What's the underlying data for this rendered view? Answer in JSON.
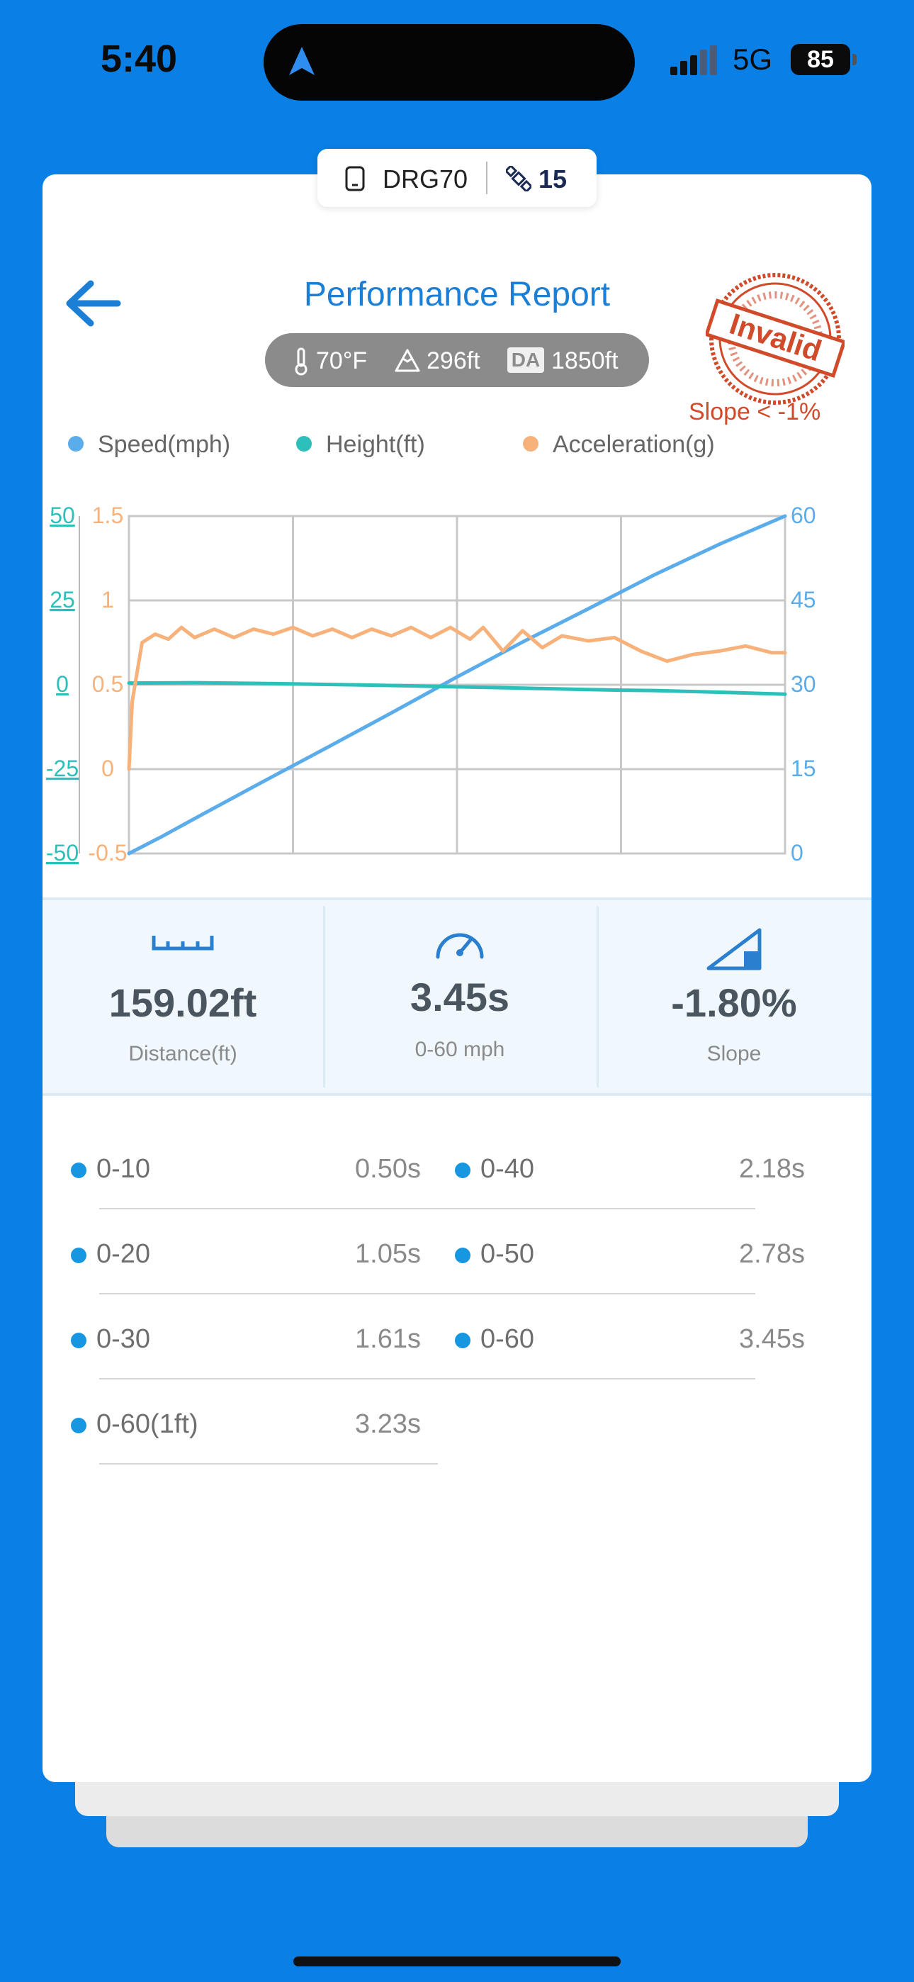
{
  "status_bar": {
    "time": "5:40",
    "network": "5G",
    "battery": "85"
  },
  "device": {
    "name": "DRG70",
    "satellites": "15"
  },
  "header": {
    "title": "Performance Report",
    "back_icon": "back-arrow-icon"
  },
  "conditions": {
    "temperature": "70°F",
    "elevation": "296ft",
    "da_label": "DA",
    "density_altitude": "1850ft"
  },
  "validity": {
    "stamp_text": "Invalid",
    "warning": "Slope < -1%",
    "stamp_color": "#d14a2a"
  },
  "legend": [
    {
      "label": "Speed(mph)",
      "color": "#5aacea"
    },
    {
      "label": "Height(ft)",
      "color": "#2dbfb9"
    },
    {
      "label": "Acceleration(g)",
      "color": "#f7b27c"
    }
  ],
  "chart_data": {
    "type": "line",
    "axes": {
      "height_left": {
        "ticks": [
          "50",
          "25",
          "0",
          "-25",
          "-50"
        ],
        "range": [
          -50,
          50
        ],
        "color": "#2dbfb9"
      },
      "accel_left": {
        "ticks": [
          "1.5",
          "1",
          "0.5",
          "0",
          "-0.5"
        ],
        "range": [
          -0.5,
          1.5
        ],
        "color": "#f7b27c"
      },
      "speed_right": {
        "ticks": [
          "60",
          "45",
          "30",
          "15",
          "0"
        ],
        "range": [
          0,
          60
        ],
        "color": "#5aacea"
      }
    },
    "x_range": [
      0,
      1
    ],
    "grid": true,
    "series": [
      {
        "name": "Speed(mph)",
        "axis": "speed_right",
        "color": "#5aacea",
        "points": [
          [
            0,
            0
          ],
          [
            0.05,
            3
          ],
          [
            0.1,
            6.2
          ],
          [
            0.2,
            12.5
          ],
          [
            0.3,
            18.7
          ],
          [
            0.4,
            25
          ],
          [
            0.5,
            31.4
          ],
          [
            0.6,
            37.6
          ],
          [
            0.7,
            43.5
          ],
          [
            0.8,
            49.5
          ],
          [
            0.9,
            55
          ],
          [
            1.0,
            60
          ]
        ]
      },
      {
        "name": "Height(ft)",
        "axis": "height_left",
        "color": "#2dbfb9",
        "points": [
          [
            0,
            0.5
          ],
          [
            0.1,
            0.6
          ],
          [
            0.2,
            0.4
          ],
          [
            0.3,
            0.1
          ],
          [
            0.4,
            -0.2
          ],
          [
            0.5,
            -0.6
          ],
          [
            0.6,
            -1.0
          ],
          [
            0.7,
            -1.4
          ],
          [
            0.75,
            -1.6
          ],
          [
            0.8,
            -1.7
          ],
          [
            0.9,
            -2.2
          ],
          [
            1.0,
            -2.8
          ]
        ]
      },
      {
        "name": "Acceleration(g)",
        "axis": "accel_left",
        "color": "#f7b27c",
        "points": [
          [
            0,
            0
          ],
          [
            0.005,
            0.4
          ],
          [
            0.02,
            0.75
          ],
          [
            0.04,
            0.8
          ],
          [
            0.06,
            0.77
          ],
          [
            0.08,
            0.84
          ],
          [
            0.1,
            0.78
          ],
          [
            0.13,
            0.83
          ],
          [
            0.16,
            0.78
          ],
          [
            0.19,
            0.83
          ],
          [
            0.22,
            0.8
          ],
          [
            0.25,
            0.84
          ],
          [
            0.28,
            0.79
          ],
          [
            0.31,
            0.83
          ],
          [
            0.34,
            0.78
          ],
          [
            0.37,
            0.83
          ],
          [
            0.4,
            0.79
          ],
          [
            0.43,
            0.84
          ],
          [
            0.46,
            0.78
          ],
          [
            0.49,
            0.84
          ],
          [
            0.52,
            0.77
          ],
          [
            0.54,
            0.84
          ],
          [
            0.57,
            0.7
          ],
          [
            0.6,
            0.82
          ],
          [
            0.63,
            0.72
          ],
          [
            0.66,
            0.79
          ],
          [
            0.7,
            0.76
          ],
          [
            0.74,
            0.78
          ],
          [
            0.78,
            0.7
          ],
          [
            0.82,
            0.64
          ],
          [
            0.86,
            0.68
          ],
          [
            0.9,
            0.7
          ],
          [
            0.94,
            0.73
          ],
          [
            0.98,
            0.69
          ],
          [
            1.0,
            0.69
          ]
        ]
      }
    ]
  },
  "stats": [
    {
      "value": "159.02ft",
      "label": "Distance(ft)",
      "icon": "ruler-icon"
    },
    {
      "value": "3.45s",
      "label": "0-60 mph",
      "icon": "speedometer-icon"
    },
    {
      "value": "-1.80%",
      "label": "Slope",
      "icon": "slope-icon"
    }
  ],
  "splits_left": [
    {
      "name": "0-10",
      "time": "0.50s"
    },
    {
      "name": "0-20",
      "time": "1.05s"
    },
    {
      "name": "0-30",
      "time": "1.61s"
    },
    {
      "name": "0-60(1ft)",
      "time": "3.23s"
    }
  ],
  "splits_right": [
    {
      "name": "0-40",
      "time": "2.18s"
    },
    {
      "name": "0-50",
      "time": "2.78s"
    },
    {
      "name": "0-60",
      "time": "3.45s"
    }
  ]
}
